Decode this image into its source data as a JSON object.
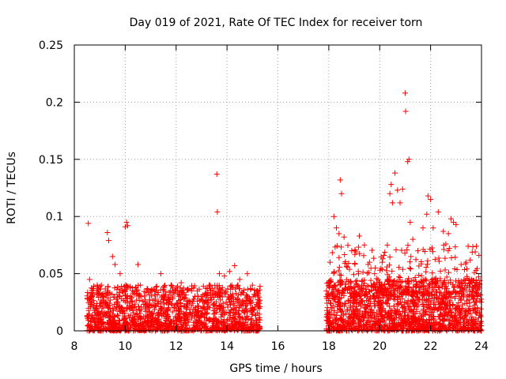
{
  "chart_data": {
    "type": "scatter",
    "title": "Day 019 of 2021, Rate Of TEC Index for receiver torn",
    "xlabel": "GPS time / hours",
    "ylabel": "ROTI / TECUs",
    "xlim": [
      8,
      24
    ],
    "ylim": [
      0,
      0.25
    ],
    "x_ticks": [
      8,
      10,
      12,
      14,
      16,
      18,
      20,
      22,
      24
    ],
    "x_tick_labels": [
      "8",
      "10",
      "12",
      "14",
      "16",
      "18",
      "20",
      "22",
      "24"
    ],
    "y_ticks": [
      0,
      0.05,
      0.1,
      0.15,
      0.2,
      0.25
    ],
    "y_tick_labels": [
      "0",
      "0.05",
      "0.1",
      "0.15",
      "0.2",
      "0.25"
    ],
    "grid": true,
    "marker": "+",
    "color": "#ff0000",
    "series": [
      {
        "name": "ROTI",
        "points": [
          [
            8.55,
            0.094
          ],
          [
            8.6,
            0.045
          ],
          [
            8.7,
            0.03
          ],
          [
            8.9,
            0.04
          ],
          [
            9.1,
            0.032
          ],
          [
            9.3,
            0.086
          ],
          [
            9.35,
            0.079
          ],
          [
            9.5,
            0.065
          ],
          [
            9.6,
            0.058
          ],
          [
            9.8,
            0.05
          ],
          [
            10.0,
            0.091
          ],
          [
            10.05,
            0.095
          ],
          [
            10.1,
            0.092
          ],
          [
            10.2,
            0.03
          ],
          [
            10.5,
            0.058
          ],
          [
            10.6,
            0.04
          ],
          [
            11.0,
            0.035
          ],
          [
            11.4,
            0.05
          ],
          [
            11.8,
            0.04
          ],
          [
            12.2,
            0.042
          ],
          [
            12.6,
            0.035
          ],
          [
            13.0,
            0.03
          ],
          [
            13.3,
            0.04
          ],
          [
            13.6,
            0.137
          ],
          [
            13.62,
            0.104
          ],
          [
            13.7,
            0.05
          ],
          [
            13.9,
            0.048
          ],
          [
            14.1,
            0.052
          ],
          [
            14.3,
            0.057
          ],
          [
            14.5,
            0.045
          ],
          [
            14.8,
            0.05
          ],
          [
            15.0,
            0.04
          ],
          [
            15.2,
            0.035
          ],
          [
            17.95,
            0.03
          ],
          [
            18.05,
            0.06
          ],
          [
            18.2,
            0.1
          ],
          [
            18.3,
            0.09
          ],
          [
            18.4,
            0.085
          ],
          [
            18.45,
            0.132
          ],
          [
            18.5,
            0.12
          ],
          [
            18.6,
            0.082
          ],
          [
            18.9,
            0.07
          ],
          [
            19.2,
            0.083
          ],
          [
            19.4,
            0.075
          ],
          [
            19.6,
            0.06
          ],
          [
            19.8,
            0.05
          ],
          [
            20.1,
            0.06
          ],
          [
            20.3,
            0.075
          ],
          [
            20.4,
            0.12
          ],
          [
            20.45,
            0.128
          ],
          [
            20.5,
            0.112
          ],
          [
            20.6,
            0.138
          ],
          [
            20.7,
            0.123
          ],
          [
            20.8,
            0.112
          ],
          [
            20.9,
            0.124
          ],
          [
            21.0,
            0.208
          ],
          [
            21.02,
            0.192
          ],
          [
            21.1,
            0.148
          ],
          [
            21.15,
            0.15
          ],
          [
            21.2,
            0.095
          ],
          [
            21.3,
            0.08
          ],
          [
            21.5,
            0.07
          ],
          [
            21.7,
            0.09
          ],
          [
            21.85,
            0.102
          ],
          [
            21.9,
            0.118
          ],
          [
            22.0,
            0.115
          ],
          [
            22.1,
            0.09
          ],
          [
            22.3,
            0.104
          ],
          [
            22.5,
            0.087
          ],
          [
            22.6,
            0.076
          ],
          [
            22.7,
            0.085
          ],
          [
            22.8,
            0.098
          ],
          [
            22.9,
            0.095
          ],
          [
            23.0,
            0.093
          ],
          [
            23.2,
            0.058
          ],
          [
            23.4,
            0.06
          ],
          [
            23.6,
            0.045
          ],
          [
            23.8,
            0.074
          ],
          [
            23.9,
            0.066
          ]
        ],
        "bands": [
          {
            "x_range": [
              8.5,
              15.3
            ],
            "y_range": [
              0.0,
              0.04
            ],
            "count": 1500
          },
          {
            "x_range": [
              17.9,
              24.0
            ],
            "y_range": [
              0.0,
              0.045
            ],
            "count": 1500
          },
          {
            "x_range": [
              18.1,
              23.9
            ],
            "y_range": [
              0.03,
              0.075
            ],
            "count": 260
          }
        ]
      }
    ]
  }
}
